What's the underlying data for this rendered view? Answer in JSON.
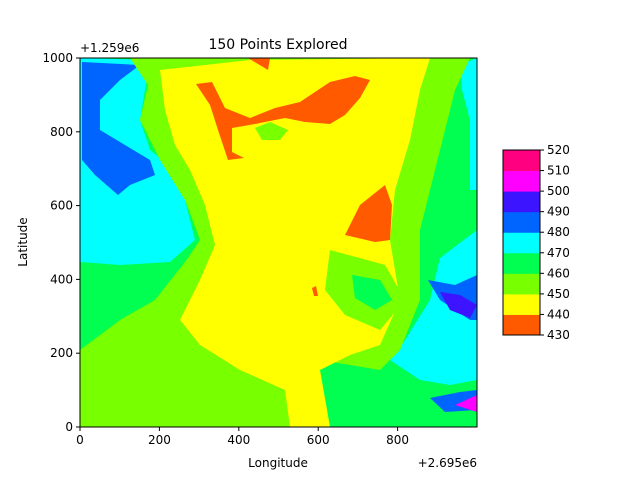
{
  "chart_data": {
    "type": "contour",
    "title": "150 Points Explored",
    "xlabel": "Longitude",
    "ylabel": "Latitude",
    "x_offset_label": "+2.695e6",
    "y_offset_label": "+1.259e6",
    "xlim": [
      0,
      1000
    ],
    "ylim": [
      0,
      1000
    ],
    "x_ticks": [
      0,
      200,
      400,
      600,
      800
    ],
    "y_ticks": [
      0,
      200,
      400,
      600,
      800,
      1000
    ],
    "grid": false,
    "colorbar": {
      "levels": [
        430,
        440,
        450,
        460,
        470,
        480,
        490,
        500,
        510,
        520
      ],
      "colors": [
        "#ff5a00",
        "#ffff00",
        "#78ff00",
        "#00ff50",
        "#00ffff",
        "#0064ff",
        "#3c14ff",
        "#ff00ff",
        "#ff0080"
      ]
    }
  }
}
